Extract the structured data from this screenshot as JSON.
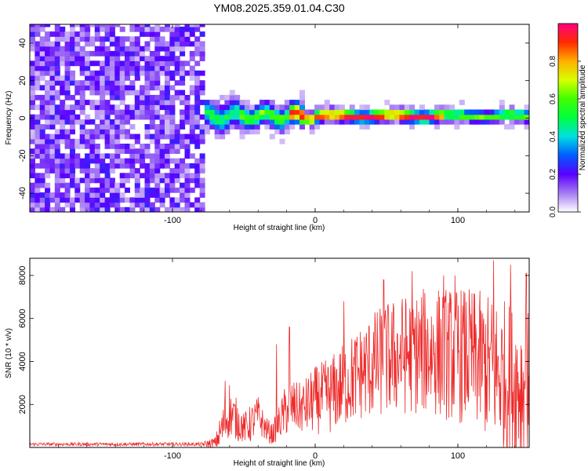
{
  "figure_title": "YM08.2025.359.01.04.C30",
  "colors": {
    "snr_line": "#ee2a2a",
    "axis": "#000000",
    "noise_dark": "#7a22f0",
    "noise_light": "#d6c2f7"
  },
  "chart_data": [
    {
      "id": "spectrogram",
      "type": "heatmap",
      "title": "",
      "xlabel": "Height of straight line (km)",
      "ylabel": "Frequency (Hz)",
      "xlim": [
        -200,
        150
      ],
      "ylim": [
        -50,
        50
      ],
      "xticks": [
        -100,
        0,
        100
      ],
      "xtick_labels": [
        "-100",
        "0",
        "100"
      ],
      "yticks": [
        -40,
        -20,
        0,
        20,
        40
      ],
      "ytick_labels": [
        "-40",
        "-20",
        "0",
        "20",
        "40"
      ],
      "noise_region_end_km": -78,
      "signal_band_center_hz": 0,
      "colorbar": {
        "label": "Normalized spectral amplitude",
        "range": [
          0,
          1
        ],
        "ticks": [
          0.0,
          0.2,
          0.4,
          0.6,
          0.8
        ],
        "tick_labels": [
          "0.0",
          "0.2",
          "0.4",
          "0.6",
          "0.8"
        ],
        "stops": [
          {
            "value": 0.0,
            "color": "#ffffff"
          },
          {
            "value": 0.1,
            "color": "#a57bf2"
          },
          {
            "value": 0.2,
            "color": "#5a00ff"
          },
          {
            "value": 0.3,
            "color": "#005bff"
          },
          {
            "value": 0.4,
            "color": "#00e0e0"
          },
          {
            "value": 0.5,
            "color": "#00ff40"
          },
          {
            "value": 0.6,
            "color": "#40ff00"
          },
          {
            "value": 0.7,
            "color": "#d7ff00"
          },
          {
            "value": 0.8,
            "color": "#ffb000"
          },
          {
            "value": 0.9,
            "color": "#ff2a00"
          },
          {
            "value": 1.0,
            "color": "#ff0080"
          }
        ]
      }
    },
    {
      "id": "snr",
      "type": "line",
      "title": "",
      "xlabel": "Height of straight line (km)",
      "ylabel": "SNR (10 * v/v)",
      "xlim": [
        -200,
        150
      ],
      "ylim": [
        0,
        8800
      ],
      "xticks": [
        -100,
        0,
        100
      ],
      "xtick_labels": [
        "-100",
        "0",
        "100"
      ],
      "yticks": [
        2000,
        4000,
        6000,
        8000
      ],
      "ytick_labels": [
        "2000",
        "4000",
        "6000",
        "8000"
      ],
      "series": [
        {
          "name": "SNR",
          "envelope_x": [
            -200,
            -80,
            -70,
            -65,
            -60,
            -55,
            -50,
            -45,
            -40,
            -35,
            -30,
            -25,
            -20,
            -15,
            -10,
            -5,
            0,
            10,
            20,
            30,
            40,
            50,
            60,
            70,
            80,
            90,
            100,
            110,
            120,
            130,
            140,
            150
          ],
          "envelope_base": [
            150,
            150,
            200,
            900,
            1600,
            1300,
            900,
            1100,
            1500,
            900,
            600,
            1200,
            1800,
            1900,
            1800,
            2000,
            2200,
            2400,
            2900,
            3400,
            3800,
            4100,
            4300,
            4400,
            4500,
            4400,
            4300,
            4200,
            3800,
            3400,
            3000,
            2800
          ],
          "envelope_amp": [
            80,
            80,
            300,
            1000,
            1100,
            1000,
            700,
            900,
            900,
            600,
            500,
            800,
            1300,
            1200,
            1200,
            1400,
            1600,
            1800,
            2000,
            2200,
            2500,
            2700,
            2800,
            2900,
            3000,
            3100,
            3200,
            3200,
            3400,
            3600,
            3800,
            3600
          ],
          "peaks": [
            {
              "x": -63,
              "y": 3100
            },
            {
              "x": -60,
              "y": 2900
            },
            {
              "x": -27,
              "y": 4800
            },
            {
              "x": -18,
              "y": 5600
            },
            {
              "x": 20,
              "y": 6800
            },
            {
              "x": 48,
              "y": 7800
            },
            {
              "x": 68,
              "y": 8200
            },
            {
              "x": 90,
              "y": 8000
            },
            {
              "x": 98,
              "y": 8000
            },
            {
              "x": 125,
              "y": 8700
            },
            {
              "x": 137,
              "y": 8500
            },
            {
              "x": 148,
              "y": 8100
            }
          ]
        }
      ]
    }
  ]
}
